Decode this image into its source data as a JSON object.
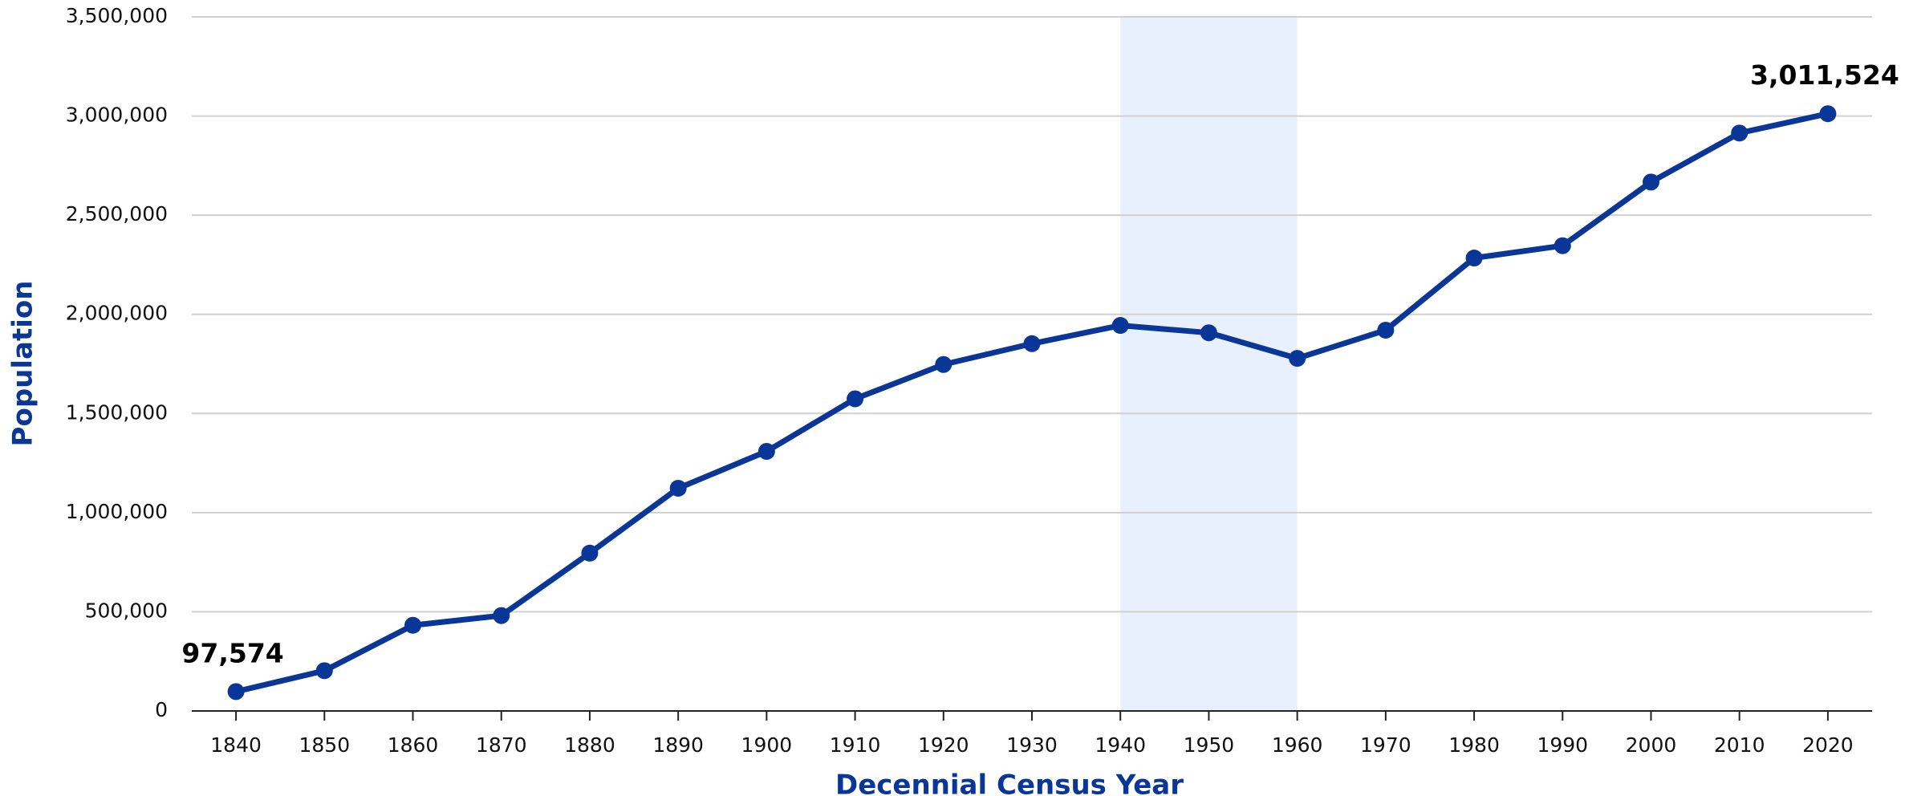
{
  "chart_data": {
    "type": "line",
    "xlabel": "Decennial Census Year",
    "ylabel": "Population",
    "x": [
      1840,
      1850,
      1860,
      1870,
      1880,
      1890,
      1900,
      1910,
      1920,
      1930,
      1940,
      1950,
      1960,
      1970,
      1980,
      1990,
      2000,
      2010,
      2020
    ],
    "series": [
      {
        "name": "Population",
        "color": "#0a3697",
        "values": [
          97574,
          203000,
          432000,
          481000,
          796000,
          1123000,
          1309000,
          1574000,
          1747000,
          1852000,
          1944000,
          1907000,
          1778000,
          1920000,
          2284000,
          2346000,
          2667000,
          2914000,
          3011524
        ],
        "value_labels": [
          "97,574",
          null,
          null,
          null,
          null,
          null,
          null,
          null,
          null,
          null,
          null,
          null,
          null,
          null,
          null,
          null,
          null,
          null,
          "3,011,524"
        ]
      }
    ],
    "highlight": [
      1940,
      1960
    ],
    "highlight_color": "#e8effd",
    "xlim": [
      1835,
      2025
    ],
    "xticks": [
      1840,
      1850,
      1860,
      1870,
      1880,
      1890,
      1900,
      1910,
      1920,
      1930,
      1940,
      1950,
      1960,
      1970,
      1980,
      1990,
      2000,
      2010,
      2020
    ],
    "ylim": [
      0,
      3500000
    ],
    "yticks": [
      0,
      {
        "value": 500000,
        "label": "500,000"
      },
      {
        "value": 1000000,
        "label": "1,000,000"
      },
      {
        "value": 1500000,
        "label": "1,500,000"
      },
      {
        "value": 2000000,
        "label": "2,000,000"
      },
      {
        "value": 2500000,
        "label": "2,500,000"
      },
      {
        "value": 3000000,
        "label": "3,000,000"
      },
      {
        "value": 3500000,
        "label": "3,500,000"
      }
    ],
    "grid": true
  }
}
